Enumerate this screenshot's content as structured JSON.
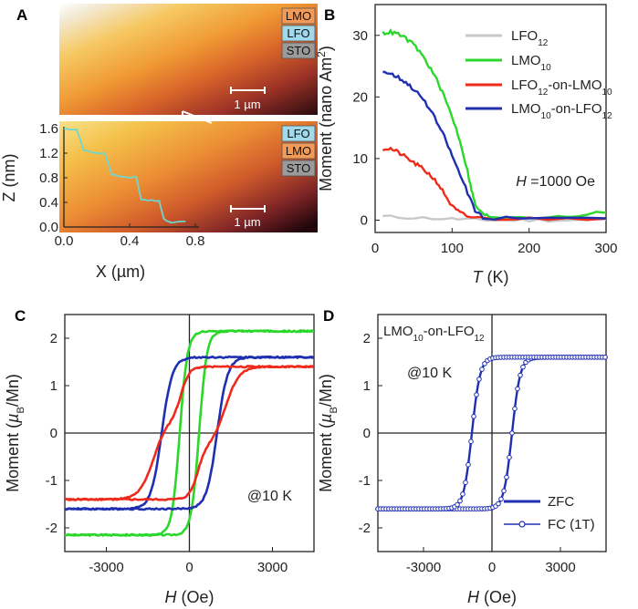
{
  "panel_labels": {
    "a": "A",
    "b": "B",
    "c": "C",
    "d": "D"
  },
  "colors": {
    "lfo12": "#c8c8c8",
    "lmo10": "#2bd72b",
    "lfo_on_lmo": "#ee2a1a",
    "lmo_on_lfo": "#1f2fb0",
    "lmo_box": "#f29a58",
    "lfo_box": "#9fd9ea",
    "sto_box": "#9a9a9a",
    "profile": "#6fd6cf"
  },
  "chart_data": [
    {
      "id": "A-top",
      "type": "image",
      "layer_stack": [
        "LMO",
        "LFO",
        "STO"
      ],
      "scalebar_label": "1 µm"
    },
    {
      "id": "A-bottom",
      "type": "line",
      "layer_stack": [
        "LFO",
        "LMO",
        "STO"
      ],
      "scalebar_label": "1 µm",
      "xlabel": "X (µm)",
      "ylabel": "Z (nm)",
      "xlim": [
        0,
        0.8
      ],
      "ylim": [
        0,
        1.6
      ],
      "xticks": [
        "0.0",
        "0.4",
        "0.8"
      ],
      "yticks": [
        "0.0",
        "0.4",
        "0.8",
        "1.2",
        "1.6"
      ],
      "x": [
        0,
        0.08,
        0.12,
        0.2,
        0.25,
        0.29,
        0.4,
        0.44,
        0.47,
        0.58,
        0.61,
        0.65,
        0.74
      ],
      "y": [
        1.6,
        1.58,
        1.25,
        1.2,
        1.2,
        0.85,
        0.8,
        0.82,
        0.45,
        0.42,
        0.12,
        0.08,
        0.09
      ]
    },
    {
      "id": "B",
      "type": "line",
      "xlabel_var": "T",
      "xlabel_unit": " (K)",
      "ylabel": "Moment (nano Am",
      "ylabel_sup": "2",
      "ylabel_end": ")",
      "xlim": [
        0,
        300
      ],
      "ylim": [
        -2,
        35
      ],
      "xticks": [
        "0",
        "100",
        "200",
        "300"
      ],
      "yticks": [
        "0",
        "10",
        "20",
        "30"
      ],
      "annotation_var": "H",
      "annotation_val": " =1000 Oe",
      "series": [
        {
          "name": "LFO",
          "sub": "12",
          "key": "lfo12",
          "x": [
            10,
            50,
            100,
            130,
            160,
            200,
            250,
            300
          ],
          "y": [
            0.6,
            0.4,
            0.2,
            0.1,
            0.0,
            0.0,
            0.0,
            0.1
          ]
        },
        {
          "name": "LMO",
          "sub": "10",
          "key": "lmo10",
          "x": [
            10,
            20,
            30,
            40,
            50,
            60,
            70,
            80,
            90,
            100,
            110,
            120,
            125,
            130,
            140,
            150,
            200,
            250,
            300
          ],
          "y": [
            30.4,
            30.5,
            30.2,
            29.5,
            28.5,
            27,
            25,
            22.8,
            20,
            16.8,
            13,
            8,
            5,
            2.5,
            0.9,
            0.6,
            0.5,
            0.7,
            1.2
          ]
        },
        {
          "name": "LFO",
          "sub": "12",
          "name2": "-on-LMO",
          "sub2": "10",
          "key": "lfo_on_lmo",
          "x": [
            10,
            20,
            30,
            40,
            50,
            60,
            70,
            80,
            90,
            100,
            110,
            120,
            140,
            200,
            300
          ],
          "y": [
            11.6,
            11.6,
            11,
            10.2,
            9.3,
            8.5,
            7.5,
            6.2,
            4.3,
            2.2,
            1.2,
            0.6,
            0.3,
            0.2,
            0.3
          ]
        },
        {
          "name": "LMO",
          "sub": "10",
          "name2": "-on-LFO",
          "sub2": "12",
          "key": "lmo_on_lfo",
          "x": [
            10,
            20,
            30,
            40,
            50,
            60,
            70,
            80,
            90,
            100,
            110,
            120,
            130,
            140,
            200,
            300
          ],
          "y": [
            24.2,
            23.8,
            23.2,
            22.4,
            21.3,
            20,
            18.2,
            16,
            13.5,
            10.5,
            7.5,
            4.5,
            1.5,
            0.4,
            0.3,
            0.3
          ]
        }
      ]
    },
    {
      "id": "C",
      "type": "line",
      "xlabel_var": "H",
      "xlabel_unit": " (Oe)",
      "ylabel_pre": "Moment (",
      "ylabel_var": "µ",
      "ylabel_sub": "B",
      "ylabel_end": "/Mn)",
      "xlim": [
        -4500,
        4500
      ],
      "ylim": [
        -2.5,
        2.5
      ],
      "xticks": [
        "-3000",
        "0",
        "3000"
      ],
      "yticks": [
        "-2",
        "-1",
        "0",
        "1",
        "2"
      ],
      "annotation": "@10 K",
      "series": [
        {
          "key": "lmo10",
          "ms": 2.15,
          "hc": 350,
          "w": 280,
          "sat_neg": -2.1
        },
        {
          "key": "lmo_on_lfo",
          "ms": 1.6,
          "hc": 1000,
          "w": 380,
          "sat_neg": -1.6
        },
        {
          "key": "lfo_on_lmo",
          "ms": 1.4,
          "hc": 1200,
          "w": 900,
          "sat_neg": -1.4
        }
      ]
    },
    {
      "id": "D",
      "type": "line",
      "title": "LMO",
      "title_sub": "10",
      "title_2": "-on-LFO",
      "title_sub2": "12",
      "xlabel_var": "H",
      "xlabel_unit": " (Oe)",
      "ylabel_pre": "Moment (",
      "ylabel_var": "µ",
      "ylabel_sub": "B",
      "ylabel_end": "/Mn)",
      "xlim": [
        -5000,
        5000
      ],
      "ylim": [
        -2.5,
        2.5
      ],
      "xticks": [
        "-3000",
        "0",
        "3000"
      ],
      "yticks": [
        "-2",
        "-1",
        "0",
        "1",
        "2"
      ],
      "annotation": "@10 K",
      "series": [
        {
          "name": "ZFC",
          "marker": "line",
          "ms": 1.6,
          "hc": 880,
          "w": 360
        },
        {
          "name": "FC (1T)",
          "marker": "circle",
          "ms": 1.6,
          "hc": 880,
          "w": 360
        }
      ]
    }
  ]
}
